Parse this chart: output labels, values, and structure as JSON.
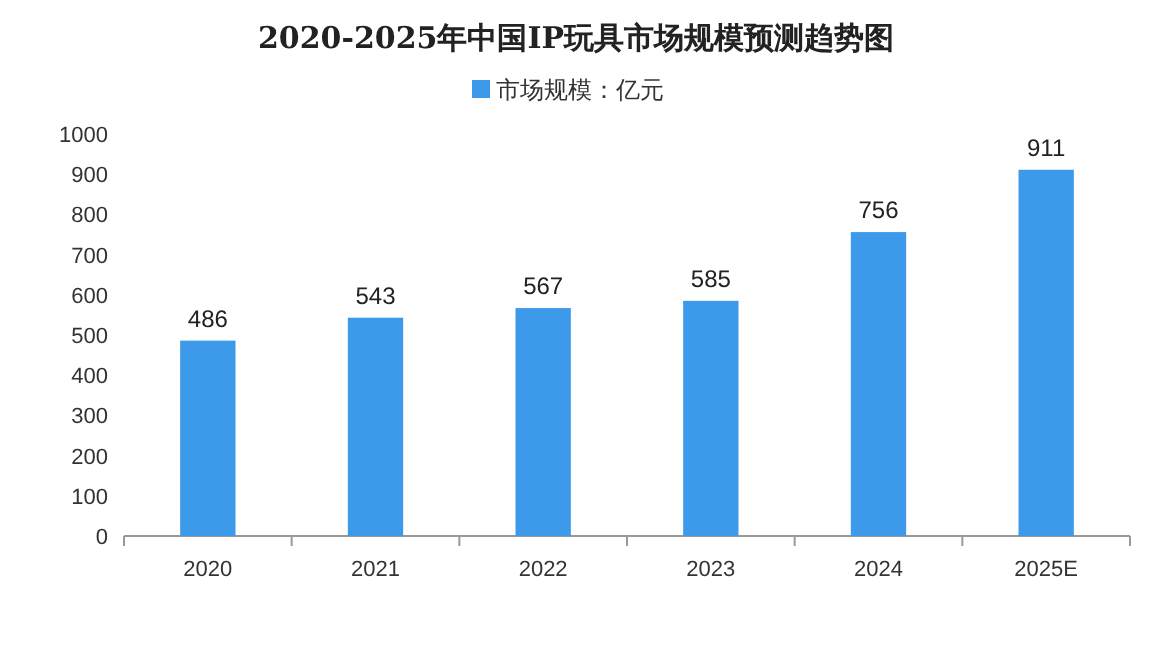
{
  "chart_data": {
    "type": "bar",
    "title": "2020-2025年中国IP玩具市场规模预测趋势图",
    "categories": [
      "2020",
      "2021",
      "2022",
      "2023",
      "2024",
      "2025E"
    ],
    "series": [
      {
        "name": "市场规模：亿元",
        "color": "#3d9aea",
        "values": [
          486,
          543,
          567,
          585,
          756,
          911
        ]
      }
    ],
    "ylim": [
      0,
      1000
    ],
    "yticks": [
      0,
      100,
      200,
      300,
      400,
      500,
      600,
      700,
      800,
      900,
      1000
    ],
    "data_labels": true,
    "legend": "top"
  }
}
